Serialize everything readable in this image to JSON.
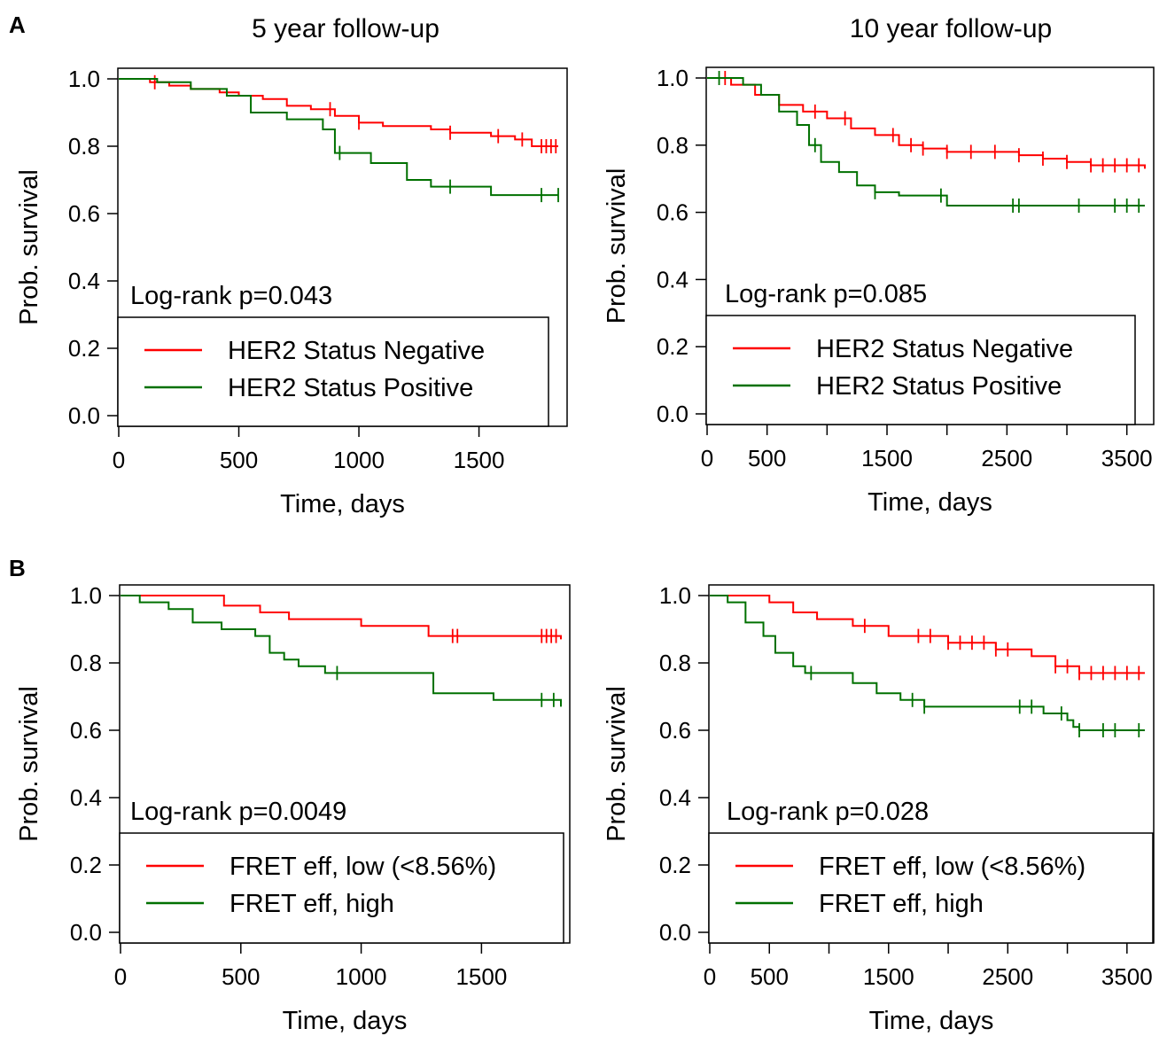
{
  "figure": {
    "panel_letters": [
      "A",
      "B"
    ],
    "column_titles": [
      "5 year follow-up",
      "10 year follow-up"
    ]
  },
  "chart_data": [
    {
      "type": "line",
      "panel": "A",
      "xlabel": "Time, days",
      "ylabel": "Prob. survival",
      "xlim": [
        0,
        1830
      ],
      "ylim": [
        0,
        1.0
      ],
      "xticks": [
        0,
        500,
        1000,
        1500
      ],
      "xtick_labels": [
        "0",
        "500",
        "1000",
        "1500"
      ],
      "yticks": [
        0.0,
        0.2,
        0.4,
        0.6,
        0.8,
        1.0
      ],
      "ytick_labels": [
        "0.0",
        "0.2",
        "0.4",
        "0.6",
        "0.8",
        "1.0"
      ],
      "annotation": "Log-rank p=0.043",
      "legend": "bottom-left",
      "series": [
        {
          "name": "HER2 Status Negative",
          "color": "#ff0000",
          "x": [
            0,
            130,
            210,
            300,
            420,
            500,
            600,
            700,
            800,
            900,
            1000,
            1100,
            1200,
            1300,
            1380,
            1450,
            1550,
            1650,
            1720,
            1830
          ],
          "y": [
            1.0,
            0.99,
            0.98,
            0.97,
            0.96,
            0.95,
            0.94,
            0.92,
            0.91,
            0.89,
            0.87,
            0.86,
            0.86,
            0.85,
            0.84,
            0.84,
            0.83,
            0.82,
            0.8,
            0.8
          ],
          "censor_x": [
            150,
            880,
            1000,
            1380,
            1580,
            1680,
            1760,
            1780,
            1800,
            1820
          ]
        },
        {
          "name": "HER2 Status Positive",
          "color": "#007000",
          "x": [
            0,
            160,
            300,
            450,
            550,
            700,
            850,
            900,
            1050,
            1200,
            1300,
            1450,
            1550,
            1830
          ],
          "y": [
            1.0,
            0.99,
            0.97,
            0.95,
            0.9,
            0.88,
            0.85,
            0.78,
            0.75,
            0.7,
            0.68,
            0.68,
            0.655,
            0.655
          ],
          "censor_x": [
            920,
            1380,
            1760,
            1830
          ]
        }
      ]
    },
    {
      "type": "line",
      "panel": "A",
      "xlabel": "Time, days",
      "ylabel": "Prob. survival",
      "xlim": [
        0,
        3650
      ],
      "ylim": [
        0,
        1.0
      ],
      "xticks": [
        0,
        500,
        1000,
        1500,
        2000,
        2500,
        3000,
        3500
      ],
      "xtick_labels": [
        "0",
        "500",
        "",
        "1500",
        "",
        "2500",
        "",
        "3500"
      ],
      "yticks": [
        0.0,
        0.2,
        0.4,
        0.6,
        0.8,
        1.0
      ],
      "ytick_labels": [
        "0.0",
        "0.2",
        "0.4",
        "0.6",
        "0.8",
        "1.0"
      ],
      "annotation": "Log-rank p=0.085",
      "legend": "bottom-left",
      "series": [
        {
          "name": "HER2 Status Negative",
          "color": "#ff0000",
          "x": [
            0,
            200,
            400,
            600,
            800,
            1000,
            1200,
            1400,
            1600,
            1800,
            2000,
            2300,
            2600,
            2800,
            3000,
            3200,
            3400,
            3650
          ],
          "y": [
            1.0,
            0.98,
            0.95,
            0.92,
            0.9,
            0.88,
            0.85,
            0.83,
            0.8,
            0.79,
            0.78,
            0.78,
            0.77,
            0.76,
            0.75,
            0.74,
            0.74,
            0.73
          ],
          "censor_x": [
            150,
            900,
            1150,
            1550,
            1700,
            1800,
            2000,
            2200,
            2400,
            2600,
            2800,
            3000,
            3200,
            3300,
            3400,
            3500,
            3600
          ]
        },
        {
          "name": "HER2 Status Positive",
          "color": "#007000",
          "x": [
            0,
            300,
            450,
            600,
            750,
            850,
            950,
            1100,
            1250,
            1400,
            1600,
            2000,
            3650
          ],
          "y": [
            1.0,
            0.98,
            0.95,
            0.9,
            0.86,
            0.8,
            0.75,
            0.72,
            0.68,
            0.66,
            0.65,
            0.62,
            0.62
          ],
          "censor_x": [
            100,
            900,
            1400,
            1950,
            2550,
            2600,
            3100,
            3400,
            3500,
            3600
          ]
        }
      ]
    },
    {
      "type": "line",
      "panel": "B",
      "xlabel": "Time, days",
      "ylabel": "Prob. survival",
      "xlim": [
        0,
        1830
      ],
      "ylim": [
        0,
        1.0
      ],
      "xticks": [
        0,
        500,
        1000,
        1500
      ],
      "xtick_labels": [
        "0",
        "500",
        "1000",
        "1500"
      ],
      "yticks": [
        0.0,
        0.2,
        0.4,
        0.6,
        0.8,
        1.0
      ],
      "ytick_labels": [
        "0.0",
        "0.2",
        "0.4",
        "0.6",
        "0.8",
        "1.0"
      ],
      "annotation": "Log-rank p=0.0049",
      "legend": "bottom-left",
      "series": [
        {
          "name": "FRET eff, low (<8.56%)",
          "color": "#ff0000",
          "x": [
            0,
            430,
            580,
            700,
            1000,
            1280,
            1830
          ],
          "y": [
            1.0,
            0.97,
            0.95,
            0.93,
            0.91,
            0.88,
            0.87
          ],
          "censor_x": [
            1380,
            1400,
            1750,
            1770,
            1790,
            1810
          ]
        },
        {
          "name": "FRET eff, high",
          "color": "#007000",
          "x": [
            0,
            80,
            200,
            300,
            420,
            560,
            620,
            680,
            740,
            850,
            1300,
            1550,
            1830
          ],
          "y": [
            1.0,
            0.98,
            0.96,
            0.92,
            0.9,
            0.88,
            0.83,
            0.81,
            0.79,
            0.77,
            0.71,
            0.69,
            0.67
          ],
          "censor_x": [
            900,
            1750,
            1800
          ]
        }
      ]
    },
    {
      "type": "line",
      "panel": "B",
      "xlabel": "Time, days",
      "ylabel": "Prob. survival",
      "xlim": [
        0,
        3650
      ],
      "ylim": [
        0,
        1.0
      ],
      "xticks": [
        0,
        500,
        1000,
        1500,
        2000,
        2500,
        3000,
        3500
      ],
      "xtick_labels": [
        "0",
        "500",
        "",
        "1500",
        "",
        "2500",
        "",
        "3500"
      ],
      "yticks": [
        0.0,
        0.2,
        0.4,
        0.6,
        0.8,
        1.0
      ],
      "ytick_labels": [
        "0.0",
        "0.2",
        "0.4",
        "0.6",
        "0.8",
        "1.0"
      ],
      "annotation": "Log-rank p=0.028",
      "legend": "bottom-left",
      "series": [
        {
          "name": "FRET eff, low (<8.56%)",
          "color": "#ff0000",
          "x": [
            0,
            500,
            700,
            900,
            1200,
            1500,
            1700,
            2000,
            2400,
            2700,
            2900,
            3100,
            3650
          ],
          "y": [
            1.0,
            0.98,
            0.95,
            0.93,
            0.91,
            0.88,
            0.88,
            0.86,
            0.84,
            0.82,
            0.79,
            0.77,
            0.77
          ],
          "censor_x": [
            1300,
            1750,
            1850,
            2000,
            2100,
            2200,
            2300,
            2400,
            2500,
            2900,
            3000,
            3100,
            3200,
            3300,
            3400,
            3500,
            3600
          ]
        },
        {
          "name": "FRET eff, high",
          "color": "#007000",
          "x": [
            0,
            150,
            300,
            450,
            550,
            700,
            800,
            1200,
            1400,
            1600,
            1800,
            2600,
            2800,
            3000,
            3050,
            3100,
            3650
          ],
          "y": [
            1.0,
            0.98,
            0.92,
            0.88,
            0.83,
            0.79,
            0.77,
            0.74,
            0.71,
            0.69,
            0.67,
            0.67,
            0.65,
            0.63,
            0.61,
            0.6,
            0.6
          ],
          "censor_x": [
            850,
            1700,
            1800,
            2600,
            2700,
            2950,
            3100,
            3300,
            3400,
            3600
          ]
        }
      ]
    }
  ]
}
